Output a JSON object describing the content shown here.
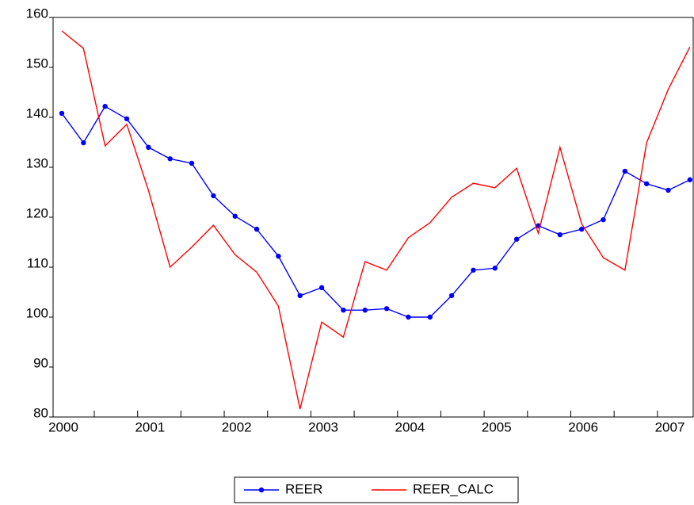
{
  "chart_data": {
    "type": "line",
    "categories": [
      "2000",
      null,
      null,
      null,
      "2001",
      null,
      null,
      null,
      "2002",
      null,
      null,
      null,
      "2003",
      null,
      null,
      null,
      "2004",
      null,
      null,
      null,
      "2005",
      null,
      null,
      null,
      "2006",
      null,
      null,
      null,
      "2007",
      null
    ],
    "series": [
      {
        "name": "REER",
        "color": "#0000ff",
        "values": [
          140.8,
          134.9,
          142.2,
          139.7,
          134.0,
          131.7,
          130.8,
          124.3,
          120.2,
          117.6,
          112.2,
          104.3,
          105.9,
          101.4,
          101.4,
          101.7,
          100.0,
          100.0,
          104.3,
          109.4,
          109.8,
          115.6,
          118.3,
          116.5,
          117.6,
          119.5,
          129.2,
          126.7,
          125.4,
          127.5
        ]
      },
      {
        "name": "REER_CALC",
        "color": "#ff0000",
        "values": [
          157.3,
          153.8,
          134.3,
          138.6,
          125.4,
          110.0,
          114.0,
          118.4,
          112.5,
          109.0,
          102.2,
          81.6,
          99.0,
          96.0,
          111.1,
          109.4,
          115.9,
          118.9,
          124.0,
          126.8,
          125.9,
          129.8,
          116.8,
          134.0,
          118.7,
          111.9,
          109.4,
          134.9,
          145.6,
          154.1
        ]
      }
    ],
    "ylim": [
      80,
      160
    ],
    "yticks": [
      80,
      90,
      100,
      110,
      120,
      130,
      140,
      150,
      160
    ]
  }
}
